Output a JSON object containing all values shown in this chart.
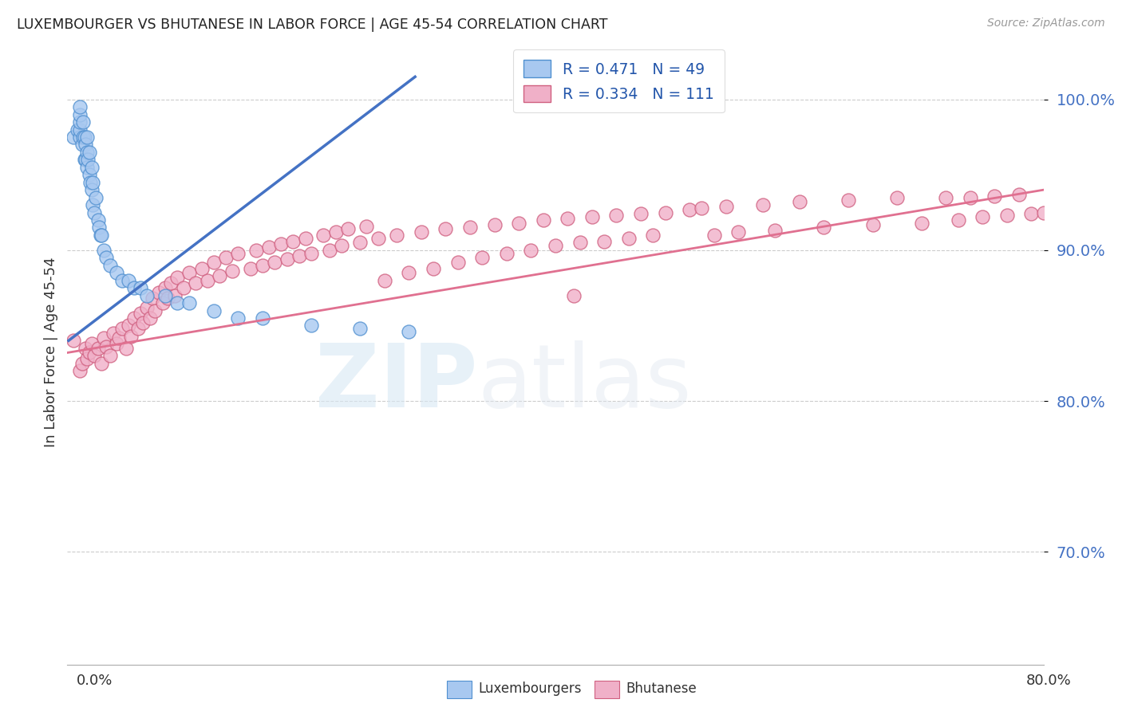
{
  "title": "LUXEMBOURGER VS BHUTANESE IN LABOR FORCE | AGE 45-54 CORRELATION CHART",
  "source": "Source: ZipAtlas.com",
  "ylabel": "In Labor Force | Age 45-54",
  "ytick_values": [
    0.7,
    0.8,
    0.9,
    1.0
  ],
  "xlim": [
    0.0,
    0.8
  ],
  "ylim": [
    0.625,
    1.04
  ],
  "legend_blue_text": "R = 0.471   N = 49",
  "legend_pink_text": "R = 0.334   N = 111",
  "blue_fill": "#a8c8f0",
  "blue_edge": "#5090d0",
  "pink_fill": "#f0b0c8",
  "pink_edge": "#d06080",
  "blue_line_color": "#4472c4",
  "pink_line_color": "#e07090",
  "watermark_zip": "ZIP",
  "watermark_atlas": "atlas",
  "gridline_color": "#cccccc",
  "background_color": "#ffffff",
  "blue_x": [
    0.005,
    0.008,
    0.01,
    0.01,
    0.01,
    0.01,
    0.01,
    0.012,
    0.013,
    0.013,
    0.014,
    0.014,
    0.015,
    0.015,
    0.016,
    0.016,
    0.016,
    0.017,
    0.018,
    0.018,
    0.019,
    0.02,
    0.02,
    0.021,
    0.021,
    0.022,
    0.023,
    0.025,
    0.026,
    0.027,
    0.028,
    0.03,
    0.032,
    0.035,
    0.04,
    0.045,
    0.05,
    0.055,
    0.06,
    0.065,
    0.08,
    0.09,
    0.1,
    0.12,
    0.14,
    0.16,
    0.2,
    0.24,
    0.28
  ],
  "blue_y": [
    0.975,
    0.98,
    0.975,
    0.98,
    0.985,
    0.99,
    0.995,
    0.97,
    0.975,
    0.985,
    0.96,
    0.975,
    0.96,
    0.97,
    0.955,
    0.965,
    0.975,
    0.96,
    0.95,
    0.965,
    0.945,
    0.94,
    0.955,
    0.93,
    0.945,
    0.925,
    0.935,
    0.92,
    0.915,
    0.91,
    0.91,
    0.9,
    0.895,
    0.89,
    0.885,
    0.88,
    0.88,
    0.875,
    0.875,
    0.87,
    0.87,
    0.865,
    0.865,
    0.86,
    0.855,
    0.855,
    0.85,
    0.848,
    0.846
  ],
  "blue_trend_x": [
    0.001,
    0.285
  ],
  "blue_trend_y": [
    0.84,
    1.015
  ],
  "pink_x": [
    0.005,
    0.01,
    0.012,
    0.015,
    0.016,
    0.018,
    0.02,
    0.022,
    0.025,
    0.028,
    0.03,
    0.032,
    0.035,
    0.038,
    0.04,
    0.042,
    0.045,
    0.048,
    0.05,
    0.052,
    0.055,
    0.058,
    0.06,
    0.062,
    0.065,
    0.068,
    0.07,
    0.072,
    0.075,
    0.078,
    0.08,
    0.082,
    0.085,
    0.088,
    0.09,
    0.095,
    0.1,
    0.105,
    0.11,
    0.115,
    0.12,
    0.125,
    0.13,
    0.135,
    0.14,
    0.15,
    0.155,
    0.16,
    0.165,
    0.17,
    0.175,
    0.18,
    0.185,
    0.19,
    0.195,
    0.2,
    0.21,
    0.215,
    0.22,
    0.225,
    0.23,
    0.24,
    0.245,
    0.255,
    0.26,
    0.27,
    0.28,
    0.29,
    0.3,
    0.31,
    0.32,
    0.33,
    0.34,
    0.35,
    0.36,
    0.37,
    0.38,
    0.39,
    0.4,
    0.41,
    0.415,
    0.42,
    0.43,
    0.44,
    0.45,
    0.46,
    0.47,
    0.48,
    0.49,
    0.51,
    0.52,
    0.53,
    0.54,
    0.55,
    0.57,
    0.58,
    0.6,
    0.62,
    0.64,
    0.66,
    0.68,
    0.7,
    0.72,
    0.73,
    0.74,
    0.75,
    0.76,
    0.77,
    0.78,
    0.79,
    0.8
  ],
  "pink_y": [
    0.84,
    0.82,
    0.825,
    0.835,
    0.828,
    0.832,
    0.838,
    0.83,
    0.835,
    0.825,
    0.842,
    0.836,
    0.83,
    0.845,
    0.838,
    0.842,
    0.848,
    0.835,
    0.85,
    0.843,
    0.855,
    0.848,
    0.858,
    0.852,
    0.862,
    0.855,
    0.868,
    0.86,
    0.872,
    0.865,
    0.875,
    0.868,
    0.878,
    0.87,
    0.882,
    0.875,
    0.885,
    0.878,
    0.888,
    0.88,
    0.892,
    0.883,
    0.895,
    0.886,
    0.898,
    0.888,
    0.9,
    0.89,
    0.902,
    0.892,
    0.904,
    0.894,
    0.906,
    0.896,
    0.908,
    0.898,
    0.91,
    0.9,
    0.912,
    0.903,
    0.914,
    0.905,
    0.916,
    0.908,
    0.88,
    0.91,
    0.885,
    0.912,
    0.888,
    0.914,
    0.892,
    0.915,
    0.895,
    0.917,
    0.898,
    0.918,
    0.9,
    0.92,
    0.903,
    0.921,
    0.87,
    0.905,
    0.922,
    0.906,
    0.923,
    0.908,
    0.924,
    0.91,
    0.925,
    0.927,
    0.928,
    0.91,
    0.929,
    0.912,
    0.93,
    0.913,
    0.932,
    0.915,
    0.933,
    0.917,
    0.935,
    0.918,
    0.935,
    0.92,
    0.935,
    0.922,
    0.936,
    0.923,
    0.937,
    0.924,
    0.925
  ],
  "pink_trend_x": [
    0.0,
    0.8
  ],
  "pink_trend_y": [
    0.832,
    0.94
  ]
}
